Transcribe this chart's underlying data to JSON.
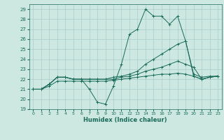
{
  "xlabel": "Humidex (Indice chaleur)",
  "bg_color": "#cce8e0",
  "grid_color": "#aacccc",
  "line_color": "#1a6b5a",
  "xlim": [
    -0.5,
    23.5
  ],
  "ylim": [
    19,
    29.5
  ],
  "xticks": [
    0,
    1,
    2,
    3,
    4,
    5,
    6,
    7,
    8,
    9,
    10,
    11,
    12,
    13,
    14,
    15,
    16,
    17,
    18,
    19,
    20,
    21,
    22,
    23
  ],
  "yticks": [
    19,
    20,
    21,
    22,
    23,
    24,
    25,
    26,
    27,
    28,
    29
  ],
  "series": [
    [
      21.0,
      21.0,
      21.5,
      22.2,
      22.2,
      22.0,
      22.0,
      21.0,
      19.7,
      19.5,
      21.3,
      23.5,
      26.5,
      27.0,
      29.0,
      28.3,
      28.3,
      27.5,
      28.3,
      25.8,
      22.3,
      22.0,
      22.2,
      22.3
    ],
    [
      21.0,
      21.0,
      21.5,
      22.2,
      22.2,
      22.0,
      22.0,
      22.0,
      22.0,
      22.0,
      22.2,
      22.3,
      22.5,
      22.8,
      23.5,
      24.0,
      24.5,
      25.0,
      25.5,
      25.8,
      22.5,
      22.2,
      22.3,
      22.3
    ],
    [
      21.0,
      21.0,
      21.5,
      22.2,
      22.2,
      22.0,
      22.0,
      22.0,
      22.0,
      22.0,
      22.0,
      22.2,
      22.3,
      22.5,
      22.8,
      23.0,
      23.2,
      23.5,
      23.8,
      23.5,
      23.2,
      22.0,
      22.2,
      22.3
    ],
    [
      21.0,
      21.0,
      21.3,
      21.8,
      21.8,
      21.8,
      21.8,
      21.8,
      21.8,
      21.8,
      21.9,
      22.0,
      22.1,
      22.2,
      22.3,
      22.4,
      22.5,
      22.5,
      22.6,
      22.5,
      22.3,
      22.0,
      22.2,
      22.3
    ]
  ]
}
